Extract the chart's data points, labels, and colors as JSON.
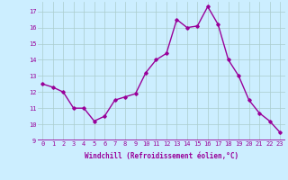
{
  "x": [
    0,
    1,
    2,
    3,
    4,
    5,
    6,
    7,
    8,
    9,
    10,
    11,
    12,
    13,
    14,
    15,
    16,
    17,
    18,
    19,
    20,
    21,
    22,
    23
  ],
  "y": [
    12.5,
    12.3,
    12.0,
    11.0,
    11.0,
    10.2,
    10.5,
    11.5,
    11.7,
    11.9,
    13.2,
    14.0,
    14.4,
    16.5,
    16.0,
    16.1,
    17.3,
    16.2,
    14.0,
    13.0,
    11.5,
    10.7,
    10.2,
    9.5
  ],
  "line_color": "#990099",
  "marker": "D",
  "marker_size": 1.8,
  "bg_color": "#cceeff",
  "grid_color": "#aacccc",
  "xlabel": "Windchill (Refroidissement éolien,°C)",
  "xlabel_color": "#990099",
  "tick_color": "#990099",
  "ylim": [
    9,
    17.6
  ],
  "xlim": [
    -0.5,
    23.5
  ],
  "yticks": [
    9,
    10,
    11,
    12,
    13,
    14,
    15,
    16,
    17
  ],
  "xticks": [
    0,
    1,
    2,
    3,
    4,
    5,
    6,
    7,
    8,
    9,
    10,
    11,
    12,
    13,
    14,
    15,
    16,
    17,
    18,
    19,
    20,
    21,
    22,
    23
  ],
  "line_width": 1.0,
  "tick_fontsize": 5.0,
  "xlabel_fontsize": 5.5
}
